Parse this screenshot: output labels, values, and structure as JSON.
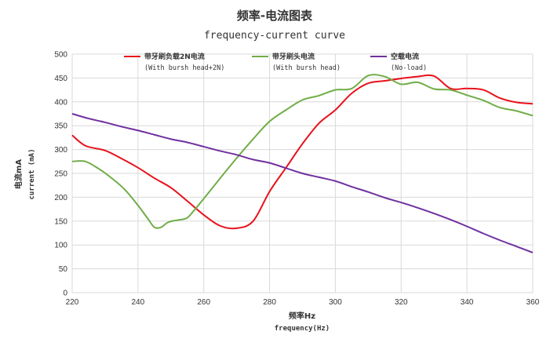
{
  "chart_data": {
    "type": "line",
    "title": "频率-电流图表",
    "subtitle": "frequency-current curve",
    "xlabel": "频率Hz",
    "xlabel_sub": "frequency(Hz)",
    "ylabel": "电流mA",
    "ylabel_sub": "current (mA)",
    "xlim": [
      220,
      360
    ],
    "ylim": [
      0,
      500
    ],
    "xticks": [
      220,
      240,
      260,
      280,
      300,
      320,
      340,
      360
    ],
    "yticks": [
      0,
      50,
      100,
      150,
      200,
      250,
      300,
      350,
      400,
      450,
      500
    ],
    "grid": true,
    "legend_position": "top",
    "series": [
      {
        "name": "带牙刷负载2N电流",
        "name_sub": "(With bursh head+2N)",
        "color": "#e8121b",
        "x": [
          220,
          224,
          230,
          235,
          240,
          245,
          250,
          255,
          260,
          265,
          270,
          275,
          280,
          285,
          290,
          295,
          300,
          305,
          310,
          315,
          320,
          325,
          330,
          335,
          340,
          345,
          350,
          355,
          360
        ],
        "y": [
          330,
          308,
          298,
          281,
          262,
          240,
          220,
          192,
          163,
          140,
          135,
          150,
          212,
          262,
          312,
          355,
          383,
          418,
          439,
          444,
          449,
          453,
          454,
          428,
          428,
          425,
          408,
          399,
          396
        ]
      },
      {
        "name": "带牙刷头电流",
        "name_sub": "(With bursh head)",
        "color": "#70ad47",
        "x": [
          220,
          224,
          228,
          232,
          236,
          240,
          243,
          245,
          247,
          249,
          251,
          253,
          255,
          257,
          260,
          265,
          270,
          275,
          280,
          285,
          290,
          295,
          300,
          305,
          310,
          315,
          320,
          325,
          330,
          335,
          340,
          345,
          350,
          355,
          360
        ],
        "y": [
          275,
          275,
          260,
          240,
          216,
          183,
          155,
          137,
          137,
          147,
          151,
          153,
          157,
          172,
          197,
          240,
          282,
          322,
          359,
          383,
          404,
          413,
          425,
          428,
          455,
          453,
          437,
          441,
          427,
          425,
          414,
          403,
          388,
          381,
          371
        ]
      },
      {
        "name": "空载电流",
        "name_sub": "(No-load)",
        "color": "#7030a0",
        "x": [
          220,
          225,
          230,
          235,
          240,
          245,
          250,
          255,
          260,
          265,
          270,
          275,
          280,
          285,
          290,
          295,
          300,
          305,
          310,
          315,
          320,
          325,
          330,
          335,
          340,
          345,
          350,
          355,
          360
        ],
        "y": [
          375,
          365,
          357,
          348,
          340,
          331,
          322,
          315,
          306,
          297,
          289,
          279,
          272,
          261,
          250,
          242,
          234,
          222,
          211,
          199,
          189,
          178,
          166,
          153,
          139,
          124,
          110,
          97,
          84
        ]
      }
    ]
  }
}
